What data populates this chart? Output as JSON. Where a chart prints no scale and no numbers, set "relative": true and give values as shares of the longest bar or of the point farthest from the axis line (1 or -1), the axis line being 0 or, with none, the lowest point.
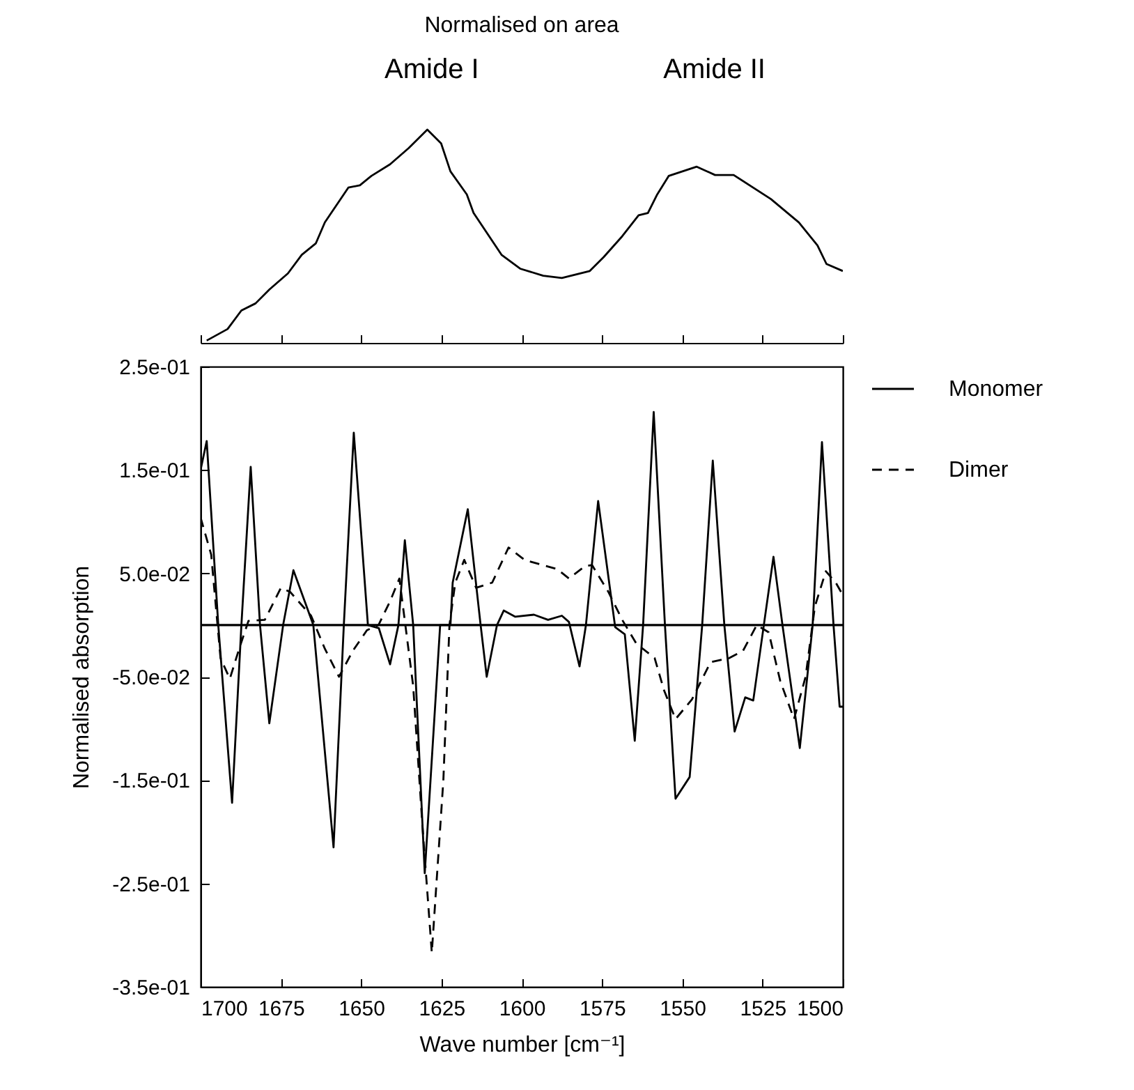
{
  "chart_data": [
    {
      "type": "line",
      "title": "Normalised on area",
      "relative": true,
      "annotations": [
        "Amide I",
        "Amide II"
      ],
      "xlim": [
        1700,
        1500
      ],
      "xticks": [
        1700,
        1675,
        1650,
        1625,
        1600,
        1575,
        1550,
        1525,
        1500
      ],
      "tick_labels": false,
      "series": [
        {
          "color": "#000000",
          "x": [
            1698.1,
            1691.6,
            1687.3,
            1682.9,
            1678.6,
            1672.8,
            1668.5,
            1664.1,
            1661.3,
            1654.0,
            1650.4,
            1646.8,
            1641.0,
            1635.2,
            1629.4,
            1625.1,
            1622.2,
            1617.1,
            1615.0,
            1606.3,
            1600.5,
            1593.3,
            1587.5,
            1578.8,
            1574.5,
            1568.7,
            1563.6,
            1560.7,
            1557.8,
            1554.2,
            1545.5,
            1539.8,
            1534.0,
            1522.4,
            1513.7,
            1507.9,
            1505.1,
            1500.0
          ],
          "values": [
            0.011,
            0.065,
            0.152,
            0.185,
            0.25,
            0.326,
            0.413,
            0.467,
            0.565,
            0.728,
            0.739,
            0.783,
            0.837,
            0.913,
            1,
            0.935,
            0.804,
            0.696,
            0.609,
            0.413,
            0.348,
            0.315,
            0.304,
            0.337,
            0.402,
            0.5,
            0.598,
            0.609,
            0.696,
            0.783,
            0.826,
            0.787,
            0.787,
            0.674,
            0.565,
            0.457,
            0.37,
            0.337
          ]
        }
      ]
    },
    {
      "type": "line",
      "xlabel": "Wave number [cm⁻¹]",
      "ylabel": "Normalised absorption",
      "xlim": [
        1700,
        1500
      ],
      "xticks": [
        1700,
        1675,
        1650,
        1625,
        1600,
        1575,
        1550,
        1525,
        1500
      ],
      "ylim": [
        -0.35,
        0.25
      ],
      "yticks": [
        {
          "value": -0.35,
          "label": "-3.5e-01"
        },
        {
          "value": -0.25,
          "label": "-2.5e-01"
        },
        {
          "value": -0.15,
          "label": "-1.5e-01"
        },
        {
          "value": -0.05,
          "label": "-5.0e-02"
        },
        {
          "value": 0.05,
          "label": "5.0e-02"
        },
        {
          "value": 0.15,
          "label": "1.5e-01"
        },
        {
          "value": 0.25,
          "label": "2.5e-01"
        }
      ],
      "legend": "right",
      "ref_lines": [
        {
          "axis": "y",
          "value": 0,
          "color": "#000000",
          "line_style": "solid"
        }
      ],
      "series": [
        {
          "name": "Monomer",
          "color": "#000000",
          "line_style": "solid",
          "x": [
            1700,
            1698.1,
            1694.5,
            1690.2,
            1687.3,
            1684.4,
            1681.5,
            1678.6,
            1674.3,
            1671.1,
            1664.9,
            1658.6,
            1655.4,
            1652.3,
            1647.9,
            1644.5,
            1641.0,
            1638.4,
            1636.4,
            1633.8,
            1630.2,
            1625.4,
            1622.2,
            1621.5,
            1616.8,
            1612.8,
            1610.9,
            1607.7,
            1605.6,
            1602.0,
            1596.2,
            1591.8,
            1587.5,
            1585.3,
            1582.0,
            1580.0,
            1576.2,
            1570.9,
            1567.9,
            1564.8,
            1562.2,
            1558.9,
            1555.4,
            1552.1,
            1547.7,
            1543.8,
            1540.5,
            1536.9,
            1533.7,
            1530.4,
            1527.9,
            1524.6,
            1521.6,
            1518.8,
            1513.4,
            1509.4,
            1506.5,
            1502.9,
            1501.0,
            1500
          ],
          "values": [
            0.15,
            0.178,
            0,
            -0.172,
            0,
            0.153,
            0,
            -0.095,
            0,
            0.053,
            0,
            -0.215,
            0,
            0.186,
            0,
            -0.003,
            -0.038,
            0,
            0.082,
            0,
            -0.24,
            0,
            0,
            0.041,
            0.112,
            0,
            -0.05,
            0,
            0.014,
            0.008,
            0.01,
            0.005,
            0.009,
            0.003,
            -0.04,
            0,
            0.12,
            -0.002,
            -0.009,
            -0.112,
            0,
            0.206,
            0,
            -0.168,
            -0.147,
            0,
            0.159,
            0,
            -0.103,
            -0.07,
            -0.073,
            0,
            0.066,
            0,
            -0.119,
            0,
            0.177,
            0,
            -0.079,
            -0.079
          ]
        },
        {
          "name": "Dimer",
          "color": "#000000",
          "line_style": "dashed",
          "x": [
            1700,
            1696.7,
            1693.8,
            1690.9,
            1688.0,
            1685.1,
            1680.0,
            1675.0,
            1672.1,
            1665.6,
            1661.3,
            1656.9,
            1652.6,
            1648.2,
            1644.6,
            1641.0,
            1638.1,
            1633.8,
            1630.9,
            1628.0,
            1624.4,
            1622.5,
            1620.7,
            1617.9,
            1614.2,
            1609.2,
            1604.1,
            1599.1,
            1596.9,
            1588.9,
            1585.3,
            1580.3,
            1578.1,
            1573.0,
            1568.7,
            1564.3,
            1558.6,
            1555.7,
            1552.1,
            1547.0,
            1541.2,
            1535.4,
            1531.1,
            1526.8,
            1523.1,
            1519.5,
            1515.2,
            1511.6,
            1508.7,
            1505.3,
            1502.2,
            1500
          ],
          "values": [
            0.104,
            0.068,
            -0.032,
            -0.052,
            -0.023,
            0.004,
            0.005,
            0.036,
            0.032,
            0.009,
            -0.023,
            -0.05,
            -0.025,
            -0.005,
            0,
            0.023,
            0.045,
            -0.059,
            -0.195,
            -0.317,
            -0.15,
            0,
            0.041,
            0.063,
            0.036,
            0.041,
            0.075,
            0.063,
            0.061,
            0.054,
            0.045,
            0.057,
            0.058,
            0.032,
            0.005,
            -0.018,
            -0.032,
            -0.063,
            -0.091,
            -0.072,
            -0.036,
            -0.032,
            -0.025,
            0,
            -0.007,
            -0.054,
            -0.091,
            -0.05,
            0.018,
            0.052,
            0.041,
            0.029
          ]
        }
      ]
    }
  ]
}
